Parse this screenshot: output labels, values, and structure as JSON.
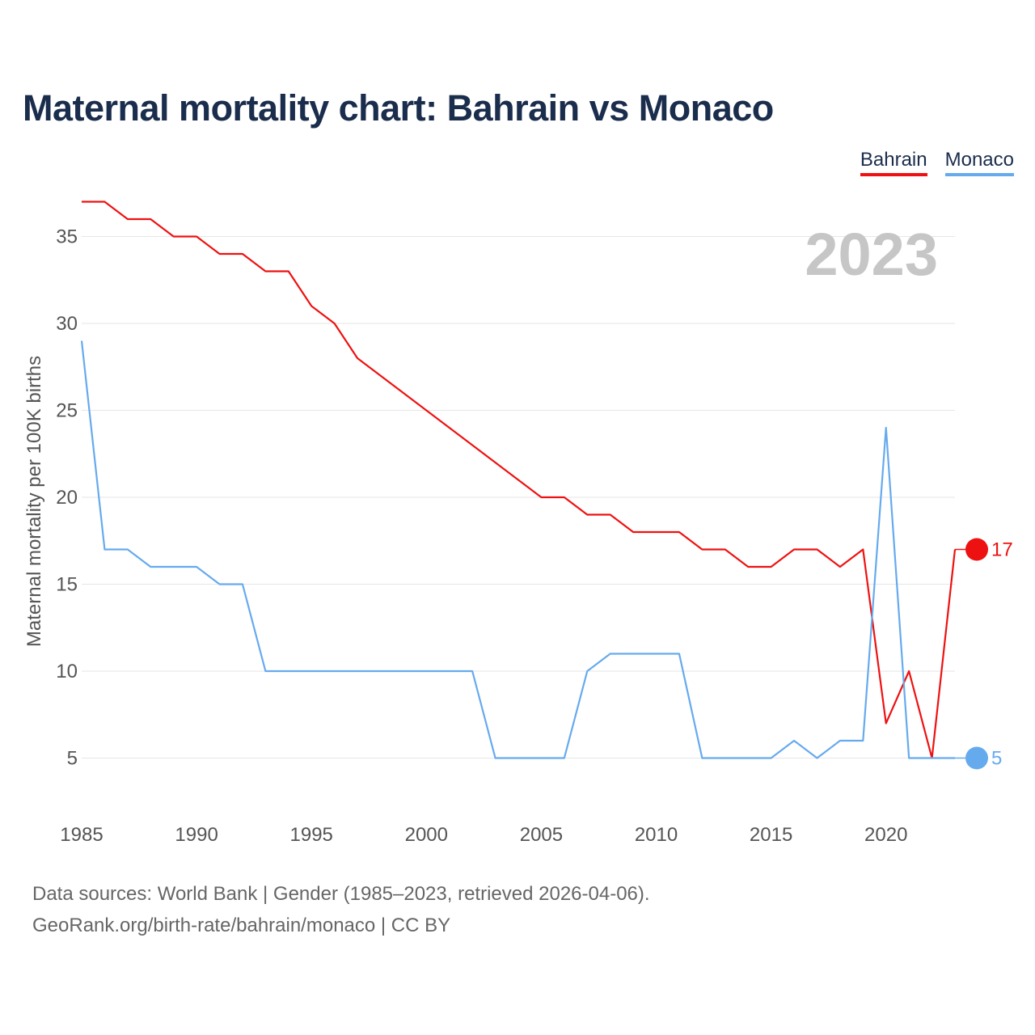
{
  "title": "Maternal mortality chart: Bahrain vs Monaco",
  "legend": [
    {
      "label": "Bahrain",
      "color": "#ee1111"
    },
    {
      "label": "Monaco",
      "color": "#66aaee"
    }
  ],
  "footer": {
    "line1": "Data sources: World Bank | Gender (1985–2023, retrieved 2026-04-06).",
    "line2": "GeoRank.org/birth-rate/bahrain/monaco | CC BY"
  },
  "chart_data": {
    "type": "line",
    "title": "Maternal mortality chart: Bahrain vs Monaco",
    "ylabel": "Maternal mortality per 100K births",
    "xlabel": "",
    "year_label": "2023",
    "xlim": [
      1985,
      2023
    ],
    "ylim": [
      2,
      38
    ],
    "x_ticks": [
      1985,
      1990,
      1995,
      2000,
      2005,
      2010,
      2015,
      2020
    ],
    "y_ticks": [
      5,
      10,
      15,
      20,
      25,
      30,
      35
    ],
    "grid": true,
    "legend_position": "top-right",
    "x": [
      1985,
      1986,
      1987,
      1988,
      1989,
      1990,
      1991,
      1992,
      1993,
      1994,
      1995,
      1996,
      1997,
      1998,
      1999,
      2000,
      2001,
      2002,
      2003,
      2004,
      2005,
      2006,
      2007,
      2008,
      2009,
      2010,
      2011,
      2012,
      2013,
      2014,
      2015,
      2016,
      2017,
      2018,
      2019,
      2020,
      2021,
      2022,
      2023
    ],
    "series": [
      {
        "name": "Bahrain",
        "color": "#ee1111",
        "end_label": "17",
        "values": [
          37,
          37,
          36,
          36,
          35,
          35,
          34,
          34,
          33,
          33,
          31,
          30,
          28,
          27,
          26,
          25,
          24,
          23,
          22,
          21,
          20,
          20,
          19,
          19,
          18,
          18,
          18,
          17,
          17,
          16,
          16,
          17,
          17,
          16,
          17,
          7,
          10,
          5,
          17
        ]
      },
      {
        "name": "Monaco",
        "color": "#66aaee",
        "end_label": "5",
        "values": [
          29,
          17,
          17,
          16,
          16,
          16,
          15,
          15,
          10,
          10,
          10,
          10,
          10,
          10,
          10,
          10,
          10,
          10,
          5,
          5,
          5,
          5,
          10,
          11,
          11,
          11,
          11,
          5,
          5,
          5,
          5,
          6,
          5,
          6,
          6,
          24,
          5,
          5,
          5
        ]
      }
    ]
  }
}
